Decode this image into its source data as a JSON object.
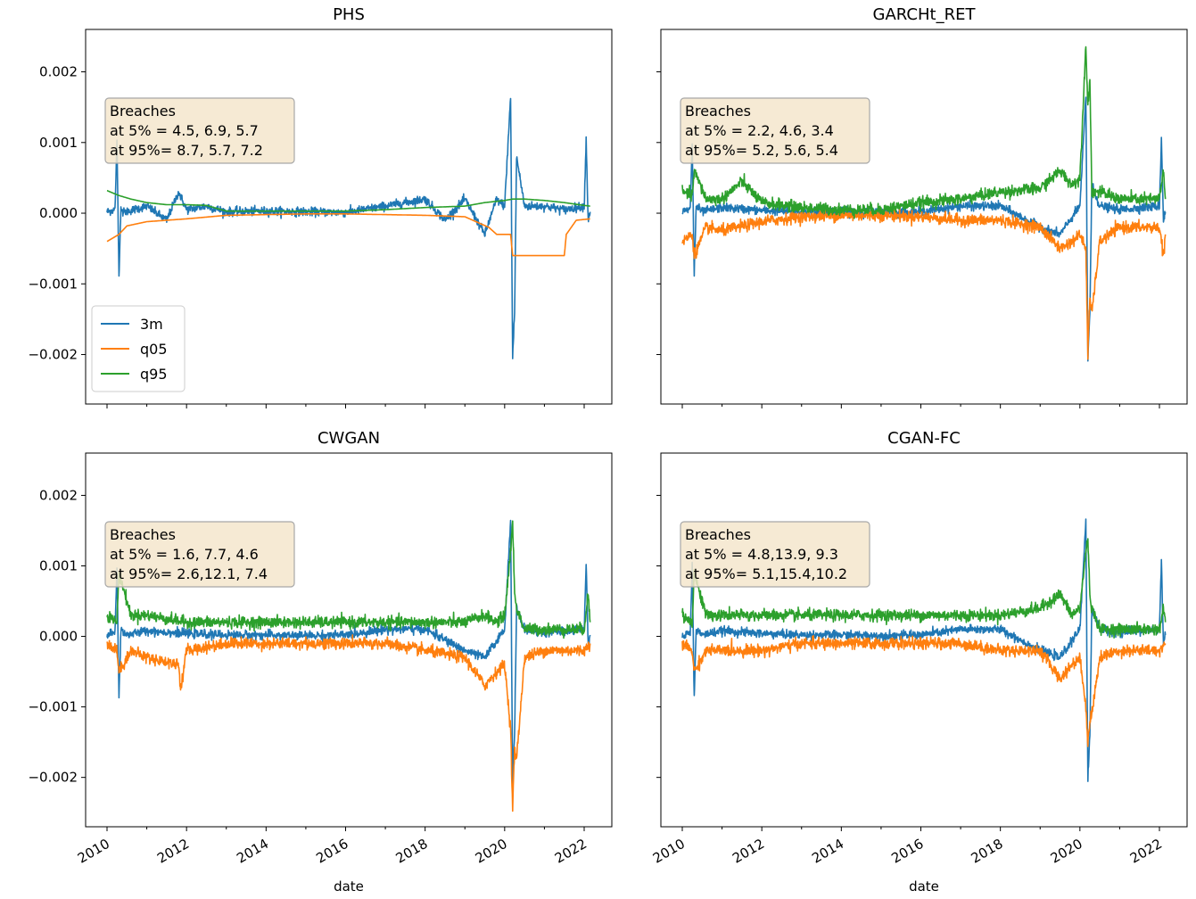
{
  "colors": {
    "3m": "#1f77b4",
    "q05": "#ff7f0e",
    "q95": "#2ca02c",
    "annotation_bg": "#f5e6cc",
    "annotation_border": "#a8a8a8"
  },
  "chart_data": [
    {
      "type": "line",
      "title": "PHS",
      "xlabel": "date",
      "ylabel": "",
      "xlim": [
        2010.0,
        2022.2
      ],
      "ylim": [
        -0.0027,
        0.0026
      ],
      "x_ticks": [
        "2010",
        "2012",
        "2014",
        "2016",
        "2018",
        "2020",
        "2022"
      ],
      "y_ticks": [
        "0.002",
        "0.001",
        "0.000",
        "−0.001",
        "−0.002"
      ],
      "show_x_tick_labels": false,
      "show_y_tick_labels": true,
      "annotation": {
        "lines": [
          "Breaches",
          "at 5% = 4.5, 6.9, 5.7",
          "at 95%= 8.7, 5.7, 7.2"
        ]
      },
      "legend": {
        "placement": "lower-left",
        "entries": [
          "3m",
          "q05",
          "q95"
        ]
      },
      "series": [
        {
          "name": "3m",
          "x": [
            2010.0,
            2010.2,
            2010.25,
            2010.3,
            2010.35,
            2010.4,
            2011.0,
            2011.5,
            2011.8,
            2012.0,
            2012.5,
            2013.0,
            2014.0,
            2015.0,
            2016.0,
            2017.0,
            2018.0,
            2018.5,
            2019.0,
            2019.5,
            2019.8,
            2020.0,
            2020.15,
            2020.2,
            2020.25,
            2020.3,
            2020.5,
            2021.0,
            2021.5,
            2022.0,
            2022.05,
            2022.1,
            2022.15
          ],
          "y": [
            2e-05,
            5e-05,
            0.001,
            -0.00088,
            0.0001,
            1e-05,
            0.0001,
            -0.0001,
            0.0003,
            5e-05,
            0.0001,
            2e-05,
            3e-05,
            2e-05,
            1e-05,
            0.0001,
            0.0002,
            -0.0001,
            0.0002,
            -0.0003,
            0.0002,
            0.0001,
            0.00165,
            -0.00205,
            -0.0014,
            0.0008,
            0.0001,
            0.0001,
            5e-05,
            0.0001,
            0.00105,
            -0.0001,
            2e-05
          ]
        },
        {
          "name": "q05",
          "x": [
            2010.0,
            2010.3,
            2010.5,
            2011.0,
            2012.0,
            2013.0,
            2014.0,
            2015.0,
            2016.0,
            2017.0,
            2018.0,
            2019.0,
            2019.6,
            2019.8,
            2020.0,
            2020.15,
            2020.2,
            2020.5,
            2021.0,
            2021.5,
            2021.55,
            2021.8,
            2022.15
          ],
          "y": [
            -0.0004,
            -0.0003,
            -0.00018,
            -0.00012,
            -8e-05,
            -3e-05,
            -2e-05,
            -1e-05,
            -1e-05,
            -2e-05,
            -3e-05,
            -5e-05,
            -0.0002,
            -0.0003,
            -0.0003,
            -0.0003,
            -0.0006,
            -0.0006,
            -0.0006,
            -0.0006,
            -0.0003,
            -0.0001,
            -8e-05
          ]
        },
        {
          "name": "q95",
          "x": [
            2010.0,
            2010.3,
            2010.6,
            2011.0,
            2011.5,
            2012.0,
            2012.5,
            2013.0,
            2014.0,
            2015.0,
            2016.0,
            2017.0,
            2018.0,
            2019.0,
            2019.5,
            2020.0,
            2020.2,
            2020.5,
            2021.0,
            2021.5,
            2022.0,
            2022.15
          ],
          "y": [
            0.00032,
            0.00025,
            0.0002,
            0.00015,
            0.00012,
            0.00012,
            0.00011,
            3e-05,
            3e-05,
            3e-05,
            3e-05,
            5e-05,
            8e-05,
            0.0001,
            0.00015,
            0.00018,
            0.0002,
            0.0002,
            0.00018,
            0.00015,
            0.00011,
            0.0001
          ]
        }
      ]
    },
    {
      "type": "line",
      "title": "GARCHt_RET",
      "xlabel": "date",
      "ylabel": "",
      "xlim": [
        2010.0,
        2022.2
      ],
      "ylim": [
        -0.0027,
        0.0026
      ],
      "x_ticks": [
        "2010",
        "2012",
        "2014",
        "2016",
        "2018",
        "2020",
        "2022"
      ],
      "y_ticks": [
        "0.002",
        "0.001",
        "0.000",
        "−0.001",
        "−0.002"
      ],
      "show_x_tick_labels": false,
      "show_y_tick_labels": false,
      "annotation": {
        "lines": [
          "Breaches",
          "at 5% = 2.2, 4.6, 3.4",
          "at 95%= 5.2, 5.6, 5.4"
        ]
      },
      "series": [
        {
          "name": "3m",
          "x": [
            2010.0,
            2010.2,
            2010.25,
            2010.3,
            2010.35,
            2010.5,
            2011.0,
            2012.0,
            2013.0,
            2014.0,
            2015.0,
            2016.0,
            2017.0,
            2018.0,
            2019.0,
            2019.5,
            2020.0,
            2020.15,
            2020.2,
            2020.25,
            2020.3,
            2020.5,
            2021.0,
            2022.0,
            2022.05,
            2022.1,
            2022.15
          ],
          "y": [
            2e-05,
            5e-05,
            0.001,
            -0.00088,
            0.0001,
            2e-05,
            8e-05,
            4e-05,
            2e-05,
            2e-05,
            1e-05,
            2e-05,
            0.0001,
            0.0001,
            -0.0002,
            -0.0003,
            0.0001,
            0.00165,
            -0.00205,
            -0.0014,
            0.0004,
            0.0001,
            5e-05,
            0.0001,
            0.00105,
            -0.0001,
            2e-05
          ]
        },
        {
          "name": "q05",
          "x": [
            2010.0,
            2010.25,
            2010.3,
            2010.6,
            2011.0,
            2012.0,
            2013.0,
            2014.0,
            2015.0,
            2016.0,
            2017.0,
            2018.0,
            2019.0,
            2019.5,
            2019.8,
            2020.0,
            2020.15,
            2020.2,
            2020.25,
            2020.3,
            2020.5,
            2021.0,
            2022.0,
            2022.1,
            2022.15
          ],
          "y": [
            -0.0004,
            -0.0003,
            -0.0006,
            -0.0002,
            -0.00025,
            -0.00012,
            -5e-05,
            -3e-05,
            -3e-05,
            -5e-05,
            -0.0001,
            -0.0001,
            -0.0002,
            -0.0005,
            -0.0004,
            -0.0003,
            -0.0005,
            -0.002,
            -0.0012,
            -0.0014,
            -0.0004,
            -0.0002,
            -0.0002,
            -0.0006,
            -0.0003
          ]
        },
        {
          "name": "q95",
          "x": [
            2010.0,
            2010.25,
            2010.3,
            2010.6,
            2011.0,
            2011.5,
            2012.0,
            2013.0,
            2014.0,
            2015.0,
            2016.0,
            2017.0,
            2018.0,
            2019.0,
            2019.5,
            2019.8,
            2020.0,
            2020.15,
            2020.2,
            2020.25,
            2020.3,
            2020.5,
            2021.0,
            2022.0,
            2022.1,
            2022.15
          ],
          "y": [
            0.0003,
            0.00025,
            0.0006,
            0.0002,
            0.0002,
            0.00045,
            0.00015,
            8e-05,
            5e-05,
            5e-05,
            0.00015,
            0.0002,
            0.0003,
            0.00035,
            0.0006,
            0.0004,
            0.0005,
            0.0024,
            0.0015,
            0.0019,
            0.0003,
            0.0003,
            0.0002,
            0.0002,
            0.0006,
            0.0002
          ]
        }
      ]
    },
    {
      "type": "line",
      "title": "CWGAN",
      "xlabel": "date",
      "ylabel": "",
      "xlim": [
        2010.0,
        2022.2
      ],
      "ylim": [
        -0.0027,
        0.0026
      ],
      "x_ticks": [
        "2010",
        "2012",
        "2014",
        "2016",
        "2018",
        "2020",
        "2022"
      ],
      "y_ticks": [
        "0.002",
        "0.001",
        "0.000",
        "−0.001",
        "−0.002"
      ],
      "show_x_tick_labels": true,
      "show_y_tick_labels": true,
      "annotation": {
        "lines": [
          "Breaches",
          "at 5% = 1.6, 7.7, 4.6",
          "at 95%= 2.6,12.1, 7.4"
        ]
      },
      "series": [
        {
          "name": "3m",
          "x": [
            2010.0,
            2010.2,
            2010.25,
            2010.3,
            2010.35,
            2010.5,
            2011.0,
            2012.0,
            2013.0,
            2014.0,
            2015.0,
            2016.0,
            2017.0,
            2018.0,
            2019.0,
            2019.5,
            2020.0,
            2020.15,
            2020.2,
            2020.25,
            2020.3,
            2020.5,
            2021.0,
            2022.0,
            2022.05,
            2022.1,
            2022.15
          ],
          "y": [
            2e-05,
            5e-05,
            0.001,
            -0.00088,
            0.0001,
            2e-05,
            8e-05,
            4e-05,
            2e-05,
            2e-05,
            1e-05,
            2e-05,
            0.0001,
            0.0001,
            -0.0002,
            -0.0003,
            0.0001,
            0.00165,
            -0.00205,
            -0.0014,
            0.0004,
            0.0001,
            5e-05,
            0.0001,
            0.00105,
            -0.0001,
            2e-05
          ]
        },
        {
          "name": "q05",
          "x": [
            2010.0,
            2010.25,
            2010.3,
            2010.6,
            2011.0,
            2011.8,
            2011.85,
            2012.0,
            2013.0,
            2014.0,
            2015.0,
            2016.0,
            2017.0,
            2018.0,
            2019.0,
            2019.5,
            2019.8,
            2020.0,
            2020.15,
            2020.2,
            2020.25,
            2020.3,
            2020.5,
            2021.0,
            2022.0,
            2022.15
          ],
          "y": [
            -0.0001,
            -0.0002,
            -0.0005,
            -0.0002,
            -0.0003,
            -0.0004,
            -0.00075,
            -0.0002,
            -0.0001,
            -0.0001,
            -0.0001,
            -0.0001,
            -0.0001,
            -0.0002,
            -0.0003,
            -0.0007,
            -0.0005,
            -0.0004,
            -0.0013,
            -0.00245,
            -0.0016,
            -0.00175,
            -0.0003,
            -0.0002,
            -0.0002,
            -0.0001
          ]
        },
        {
          "name": "q95",
          "x": [
            2010.0,
            2010.25,
            2010.3,
            2010.6,
            2011.0,
            2012.0,
            2013.0,
            2014.0,
            2015.0,
            2016.0,
            2017.0,
            2018.0,
            2019.0,
            2019.5,
            2019.8,
            2020.0,
            2020.15,
            2020.2,
            2020.25,
            2020.3,
            2020.5,
            2021.0,
            2022.0,
            2022.1,
            2022.15
          ],
          "y": [
            0.0003,
            0.0002,
            0.0009,
            0.0003,
            0.0003,
            0.0002,
            0.0002,
            0.0002,
            0.0002,
            0.0002,
            0.0002,
            0.0002,
            0.0002,
            0.0003,
            0.0002,
            0.0003,
            0.0012,
            0.00165,
            0.0006,
            0.0004,
            0.0001,
            0.0001,
            0.0001,
            0.0006,
            0.0002
          ]
        }
      ]
    },
    {
      "type": "line",
      "title": "CGAN-FC",
      "xlabel": "date",
      "ylabel": "",
      "xlim": [
        2010.0,
        2022.2
      ],
      "ylim": [
        -0.0027,
        0.0026
      ],
      "x_ticks": [
        "2010",
        "2012",
        "2014",
        "2016",
        "2018",
        "2020",
        "2022"
      ],
      "y_ticks": [
        "0.002",
        "0.001",
        "0.000",
        "−0.001",
        "−0.002"
      ],
      "show_x_tick_labels": true,
      "show_y_tick_labels": false,
      "annotation": {
        "lines": [
          "Breaches",
          "at 5% = 4.8,13.9, 9.3",
          "at 95%= 5.1,15.4,10.2"
        ]
      },
      "series": [
        {
          "name": "3m",
          "x": [
            2010.0,
            2010.2,
            2010.25,
            2010.3,
            2010.35,
            2010.5,
            2011.0,
            2012.0,
            2013.0,
            2014.0,
            2015.0,
            2016.0,
            2017.0,
            2018.0,
            2019.0,
            2019.5,
            2020.0,
            2020.15,
            2020.2,
            2020.25,
            2020.3,
            2020.5,
            2021.0,
            2022.0,
            2022.05,
            2022.1,
            2022.15
          ],
          "y": [
            2e-05,
            5e-05,
            0.001,
            -0.00088,
            0.0001,
            2e-05,
            8e-05,
            4e-05,
            2e-05,
            2e-05,
            1e-05,
            2e-05,
            0.0001,
            0.0001,
            -0.0002,
            -0.0003,
            0.0001,
            0.00165,
            -0.00205,
            -0.0014,
            0.0004,
            0.0001,
            5e-05,
            0.0001,
            0.00105,
            -0.0001,
            2e-05
          ]
        },
        {
          "name": "q05",
          "x": [
            2010.0,
            2010.25,
            2010.3,
            2010.6,
            2011.0,
            2012.0,
            2013.0,
            2014.0,
            2015.0,
            2016.0,
            2017.0,
            2018.0,
            2019.0,
            2019.5,
            2019.8,
            2020.0,
            2020.15,
            2020.2,
            2020.25,
            2020.3,
            2020.5,
            2021.0,
            2022.0,
            2022.15
          ],
          "y": [
            -0.0001,
            -0.0002,
            -0.0005,
            -0.0002,
            -0.0002,
            -0.0002,
            -0.0001,
            -0.0001,
            -0.0001,
            -0.0001,
            -0.0001,
            -0.0002,
            -0.0002,
            -0.0006,
            -0.0004,
            -0.0003,
            -0.001,
            -0.0015,
            -0.0012,
            -0.0011,
            -0.0003,
            -0.0002,
            -0.0002,
            -0.0001
          ]
        },
        {
          "name": "q95",
          "x": [
            2010.0,
            2010.25,
            2010.3,
            2010.6,
            2011.0,
            2012.0,
            2013.0,
            2014.0,
            2015.0,
            2016.0,
            2017.0,
            2018.0,
            2019.0,
            2019.5,
            2019.8,
            2020.0,
            2020.15,
            2020.2,
            2020.25,
            2020.3,
            2020.5,
            2021.0,
            2022.0,
            2022.1,
            2022.15
          ],
          "y": [
            0.0003,
            0.0002,
            0.0009,
            0.0003,
            0.0003,
            0.0003,
            0.0003,
            0.0003,
            0.0003,
            0.0003,
            0.0003,
            0.0003,
            0.0004,
            0.0006,
            0.0003,
            0.0004,
            0.0012,
            0.0014,
            0.0006,
            0.0004,
            0.0001,
            0.0001,
            0.0001,
            0.0004,
            0.0002
          ]
        }
      ]
    }
  ]
}
